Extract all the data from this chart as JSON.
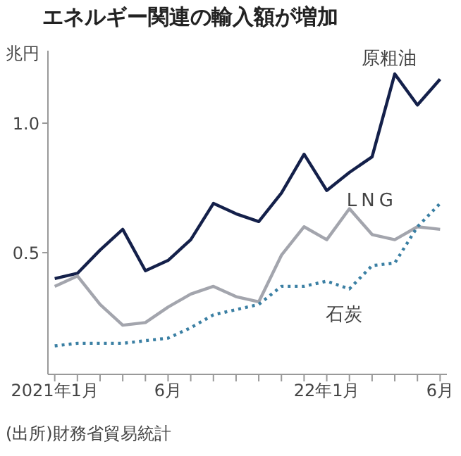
{
  "chart_data": {
    "type": "line",
    "title": "エネルギー関連の輸入額が増加",
    "ylabel": "兆円",
    "annotations": [
      "(出所)財務省貿易統計"
    ],
    "categories": [
      "2021年1月",
      null,
      null,
      null,
      null,
      "6月",
      null,
      null,
      null,
      null,
      null,
      null,
      "22年1月",
      null,
      null,
      null,
      null,
      "6月"
    ],
    "series": [
      {
        "name": "原粗油",
        "color": "#14204a",
        "line_style": "solid",
        "values": [
          0.4,
          0.42,
          0.51,
          0.59,
          0.43,
          0.47,
          0.55,
          0.69,
          0.65,
          0.62,
          0.73,
          0.88,
          0.74,
          0.81,
          0.87,
          1.19,
          1.07,
          1.17
        ]
      },
      {
        "name": "LNG",
        "color": "#a3a5ad",
        "line_style": "solid",
        "values": [
          0.37,
          0.41,
          0.3,
          0.22,
          0.23,
          0.29,
          0.34,
          0.37,
          0.33,
          0.31,
          0.49,
          0.6,
          0.55,
          0.67,
          0.57,
          0.55,
          0.6,
          0.59
        ]
      },
      {
        "name": "石炭",
        "color": "#3a7fa3",
        "line_style": "dotted",
        "values": [
          0.14,
          0.15,
          0.15,
          0.15,
          0.16,
          0.17,
          0.21,
          0.26,
          0.28,
          0.3,
          0.37,
          0.37,
          0.39,
          0.36,
          0.45,
          0.46,
          0.6,
          0.69
        ]
      }
    ],
    "ylim": [
      0.03,
      1.28
    ],
    "yticks": [
      {
        "value": 0.5,
        "label": "0.5"
      },
      {
        "value": 1,
        "label": "1.0"
      }
    ],
    "grid": false,
    "legend": false,
    "marker": "none"
  }
}
